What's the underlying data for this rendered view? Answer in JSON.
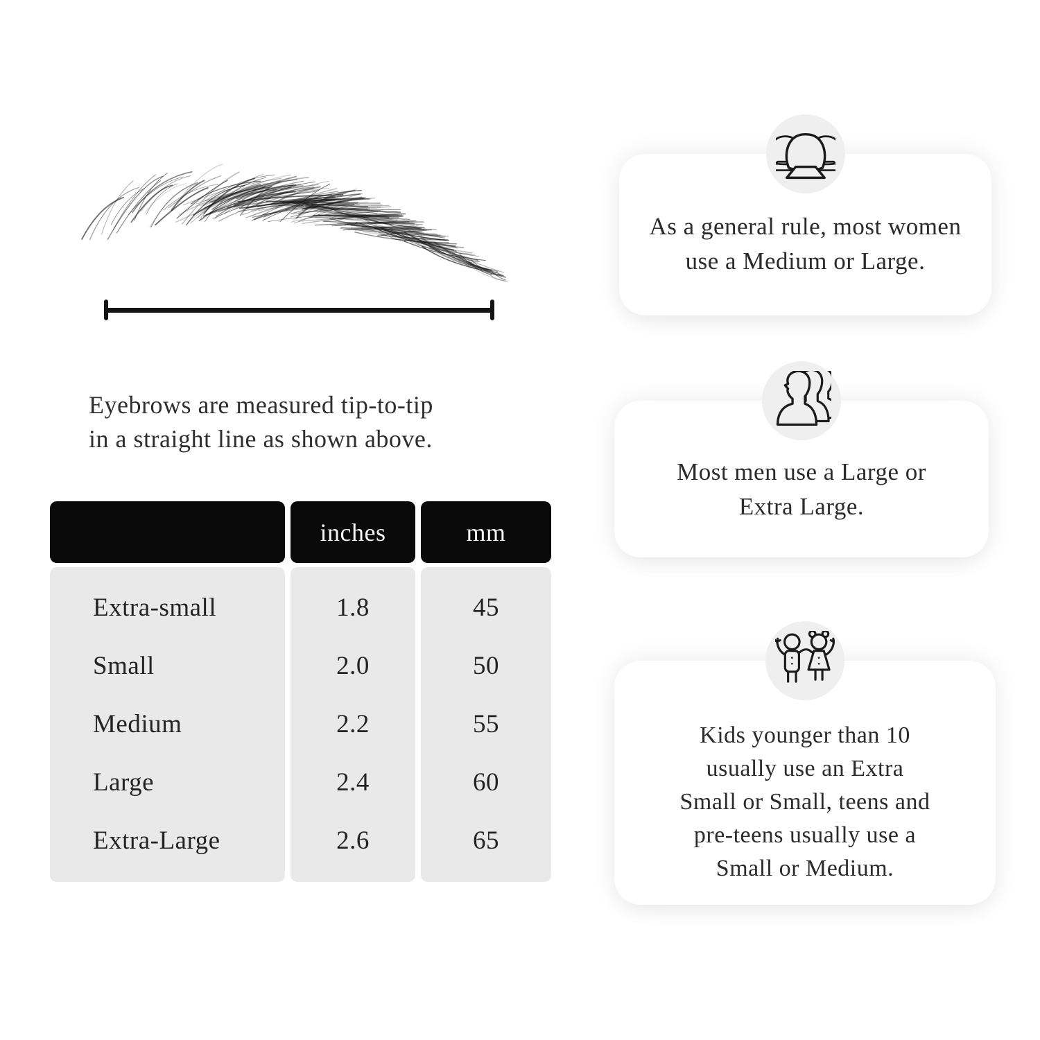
{
  "colors": {
    "page_bg": "#ffffff",
    "measure_line": "#141414",
    "table_header_bg": "#0a0a0a",
    "table_header_text": "#f5f5f5",
    "table_body_bg": "#e9e9e9",
    "card_bg": "#ffffff",
    "icon_circle_bg": "#efefef",
    "icon_stroke": "#1b1b1b",
    "body_text": "#2b2b2b"
  },
  "measurement": {
    "illustration": "eyebrow-sketch",
    "line": "tip-to-tip-measurement-line",
    "caption": "Eyebrows are measured tip-to-tip\nin a straight line as shown above."
  },
  "size_table": {
    "columns": [
      "",
      "inches",
      "mm"
    ],
    "rows": [
      {
        "size": "Extra-small",
        "inches": "1.8",
        "mm": "45"
      },
      {
        "size": "Small",
        "inches": "2.0",
        "mm": "50"
      },
      {
        "size": "Medium",
        "inches": "2.2",
        "mm": "55"
      },
      {
        "size": "Large",
        "inches": "2.4",
        "mm": "60"
      },
      {
        "size": "Extra-Large",
        "inches": "2.6",
        "mm": "65"
      }
    ]
  },
  "cards": [
    {
      "icon": "women-group-icon",
      "text": "As a general rule, most women\nuse a Medium or Large."
    },
    {
      "icon": "men-group-icon",
      "text": "Most men use a Large or\nExtra Large."
    },
    {
      "icon": "kids-icon",
      "text": "Kids younger than 10\nusually use an Extra\nSmall or Small, teens and\npre-teens usually use a\nSmall or Medium."
    }
  ]
}
